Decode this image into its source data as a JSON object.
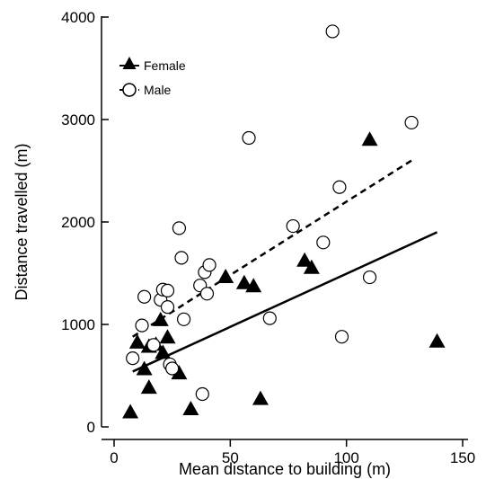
{
  "chart_data": {
    "type": "scatter",
    "title": "",
    "xlabel": "Mean distance to building (m)",
    "ylabel": "Distance travelled (m)",
    "xlim": [
      -5,
      155
    ],
    "ylim": [
      -50,
      4050
    ],
    "xticks": [
      0,
      50,
      100,
      150
    ],
    "yticks": [
      0,
      1000,
      2000,
      3000,
      4000
    ],
    "grid": false,
    "legend_position": "top-left",
    "series": [
      {
        "name": "Female",
        "marker": "filled-triangle",
        "color": "#000000",
        "points": [
          [
            7,
            140
          ],
          [
            10,
            820
          ],
          [
            13,
            560
          ],
          [
            15,
            780
          ],
          [
            15,
            380
          ],
          [
            18,
            800
          ],
          [
            20,
            1040
          ],
          [
            21,
            720
          ],
          [
            23,
            870
          ],
          [
            28,
            520
          ],
          [
            33,
            170
          ],
          [
            48,
            1460
          ],
          [
            56,
            1400
          ],
          [
            60,
            1370
          ],
          [
            63,
            270
          ],
          [
            82,
            1620
          ],
          [
            85,
            1550
          ],
          [
            110,
            2800
          ],
          [
            139,
            830
          ]
        ],
        "fit": {
          "x": [
            8,
            139
          ],
          "y": [
            540,
            1900
          ],
          "style": "solid"
        }
      },
      {
        "name": "Male",
        "marker": "open-circle",
        "color": "#000000",
        "points": [
          [
            8,
            670
          ],
          [
            12,
            990
          ],
          [
            13,
            1270
          ],
          [
            17,
            800
          ],
          [
            20,
            1240
          ],
          [
            21,
            1340
          ],
          [
            23,
            1330
          ],
          [
            23,
            1170
          ],
          [
            24,
            610
          ],
          [
            25,
            570
          ],
          [
            28,
            1940
          ],
          [
            29,
            1650
          ],
          [
            30,
            1050
          ],
          [
            37,
            1380
          ],
          [
            38,
            320
          ],
          [
            39,
            1510
          ],
          [
            40,
            1300
          ],
          [
            41,
            1580
          ],
          [
            58,
            2820
          ],
          [
            67,
            1060
          ],
          [
            77,
            1960
          ],
          [
            90,
            1800
          ],
          [
            94,
            3860
          ],
          [
            97,
            2340
          ],
          [
            98,
            880
          ],
          [
            110,
            1460
          ],
          [
            128,
            2970
          ]
        ],
        "fit": {
          "x": [
            8,
            128
          ],
          "y": [
            880,
            2600
          ],
          "style": "dashed"
        }
      }
    ]
  }
}
